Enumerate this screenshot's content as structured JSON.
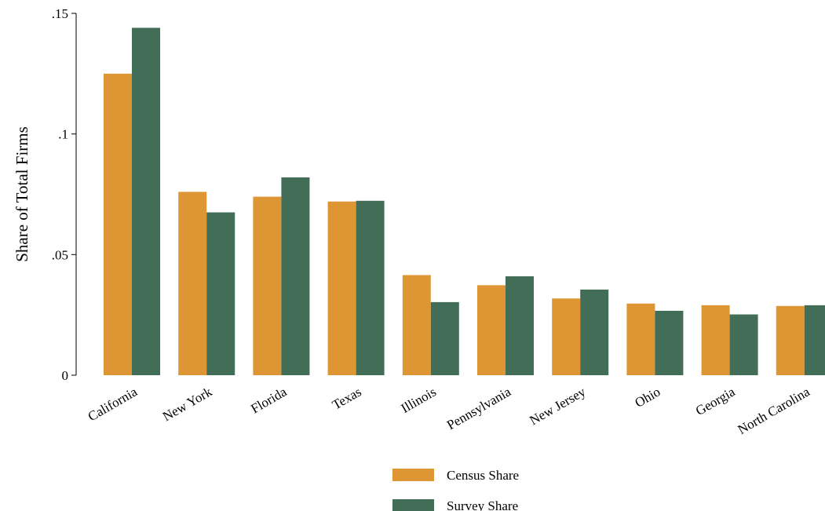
{
  "chart_data": {
    "type": "bar",
    "title": "",
    "xlabel": "",
    "ylabel": "Share of Total Firms",
    "ylim": [
      0,
      0.15
    ],
    "yticks": [
      {
        "value": 0,
        "label": "0"
      },
      {
        "value": 0.05,
        "label": ".05"
      },
      {
        "value": 0.1,
        "label": ".1"
      },
      {
        "value": 0.15,
        "label": ".15"
      }
    ],
    "grid": false,
    "legend_position": "bottom",
    "categories": [
      "California",
      "New York",
      "Florida",
      "Texas",
      "Illinois",
      "Pennsylvania",
      "New Jersey",
      "Ohio",
      "Georgia",
      "North Carolina"
    ],
    "series": [
      {
        "name": "Census Share",
        "color": "#dd9633",
        "values": [
          0.125,
          0.076,
          0.074,
          0.072,
          0.0415,
          0.0373,
          0.0318,
          0.0297,
          0.029,
          0.0287
        ]
      },
      {
        "name": "Survey Share",
        "color": "#426e57",
        "values": [
          0.144,
          0.0675,
          0.082,
          0.0723,
          0.0303,
          0.041,
          0.0355,
          0.0267,
          0.0252,
          0.029
        ]
      }
    ]
  }
}
